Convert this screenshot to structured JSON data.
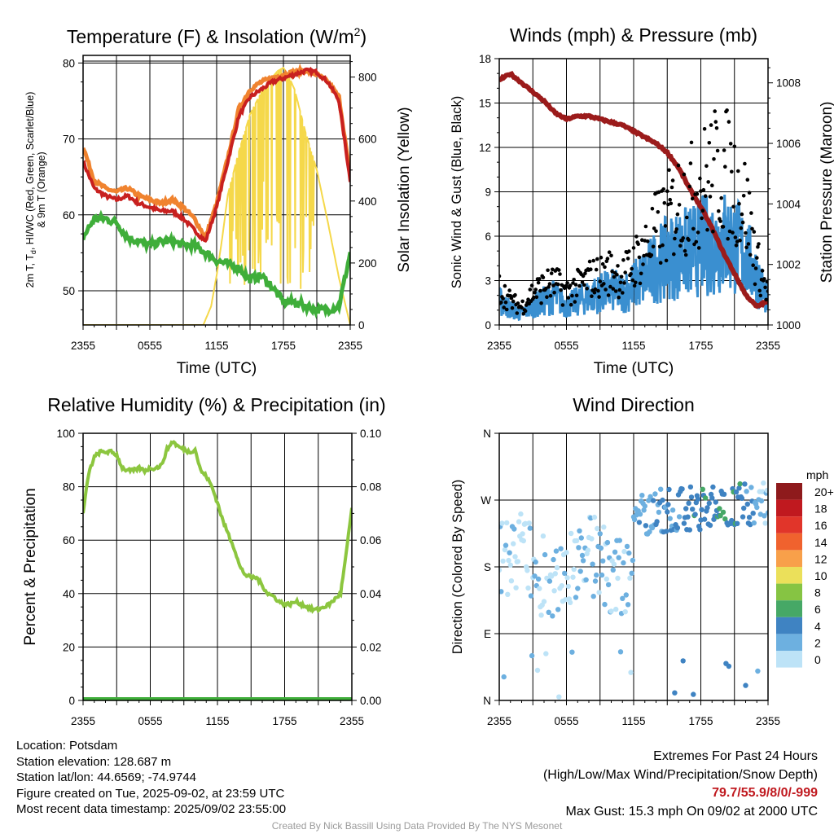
{
  "colors": {
    "temp": "#c8201f",
    "temp9m": "#f0832f",
    "dewpoint": "#3fae3a",
    "insolation": "#f5d84a",
    "wind": "#3a8fd0",
    "gust": "#000000",
    "pressure": "#9b1b1b",
    "rh": "#8cc63f",
    "precip": "#3fae3a"
  },
  "chart_data": [
    {
      "type": "line",
      "title_main": "Temperature (F) & Insolation (W/m",
      "title_sup": "2",
      "title_close": ")",
      "xlabel": "Time (UTC)",
      "ylabel_left_1": "2m T, T",
      "ylabel_left_sub": "d",
      "ylabel_left_2": ", HI/WC (Red, Green, Scarlet/Blue)",
      "ylabel_left_3": "& 9m T (Orange)",
      "ylabel_right": "Solar Insolation (Yellow)",
      "xticks": [
        "2355",
        "0555",
        "1155",
        "1755",
        "2355"
      ],
      "ylim_left": [
        45.5,
        81
      ],
      "yticks_left": [
        "50",
        "60",
        "70",
        "80"
      ],
      "ylim_right": [
        0,
        870
      ],
      "yticks_right": [
        "0",
        "200",
        "400",
        "600",
        "800"
      ],
      "x_hours": [
        0,
        1,
        2,
        3,
        4,
        5,
        6,
        7,
        8,
        9,
        10,
        11,
        12,
        13,
        14,
        15,
        16,
        17,
        18,
        19,
        20,
        21,
        22,
        23,
        24
      ],
      "series": [
        {
          "key": "temp",
          "values": [
            67,
            63.5,
            62.5,
            62,
            62.5,
            61.5,
            61,
            60.5,
            60.5,
            59.5,
            58,
            56.5,
            61,
            67,
            73,
            75.5,
            76.5,
            77.5,
            78,
            78.5,
            79,
            78.8,
            77.5,
            75,
            64.5
          ]
        },
        {
          "key": "temp9m",
          "values": [
            69,
            64.5,
            63.5,
            63,
            63.5,
            62.5,
            62,
            61.5,
            62,
            61,
            59.5,
            57,
            61.5,
            67.5,
            74,
            76.5,
            77.5,
            78,
            78.5,
            78.8,
            79,
            78.5,
            77.5,
            75.5,
            65
          ]
        },
        {
          "key": "dewpoint",
          "values": [
            57,
            59.5,
            59.5,
            59,
            57,
            56.5,
            56,
            56.5,
            56.5,
            56,
            56,
            55,
            54,
            53.5,
            53,
            51.5,
            52,
            50.5,
            48.5,
            48.5,
            48,
            47.5,
            47.5,
            48,
            55
          ]
        }
      ],
      "insolation_hours": [
        0,
        10.8,
        11.5,
        12,
        12.5,
        13,
        14,
        15,
        16,
        17,
        17.5,
        18,
        18.5,
        19,
        20,
        21,
        22,
        23,
        24
      ],
      "insolation_values": [
        0,
        0,
        60,
        160,
        280,
        420,
        560,
        680,
        750,
        800,
        820,
        830,
        800,
        760,
        620,
        500,
        330,
        150,
        0
      ]
    },
    {
      "type": "line",
      "title": "Winds (mph) & Pressure (mb)",
      "xlabel": "Time (UTC)",
      "ylabel_left": "Sonic Wind & Gust (Blue, Black)",
      "ylabel_right": "Station Pressure (Maroon)",
      "xticks": [
        "2355",
        "0555",
        "1155",
        "1755",
        "2355"
      ],
      "ylim_left": [
        0,
        18
      ],
      "yticks_left": [
        "0",
        "3",
        "6",
        "9",
        "12",
        "15",
        "18"
      ],
      "ylim_right": [
        1000,
        1008.8
      ],
      "yticks_right": [
        "1000",
        "1002",
        "1004",
        "1006",
        "1008"
      ],
      "x_hours": [
        0,
        1,
        2,
        3,
        4,
        5,
        6,
        7,
        8,
        9,
        10,
        11,
        12,
        13,
        14,
        15,
        16,
        17,
        18,
        19,
        20,
        21,
        22,
        23,
        24
      ],
      "wind_values": [
        1.5,
        1,
        0.7,
        1.2,
        1.5,
        1.8,
        1.2,
        1.5,
        1.8,
        2,
        2.2,
        2,
        2.5,
        3,
        3.8,
        4.2,
        4.5,
        4.6,
        5,
        5,
        5.3,
        5.1,
        4.4,
        3,
        1.5
      ],
      "gust_values": [
        2.5,
        1.6,
        1.2,
        2.2,
        2.6,
        2.8,
        2.2,
        2.6,
        3.1,
        3.3,
        3.6,
        3.2,
        4.2,
        5.1,
        6.3,
        7.1,
        8.2,
        8.5,
        9.3,
        10.1,
        10.6,
        9.4,
        8.1,
        4.2,
        2.1
      ],
      "pressure_values": [
        1008.1,
        1008.3,
        1008.0,
        1007.7,
        1007.4,
        1007.0,
        1006.8,
        1006.9,
        1006.9,
        1006.8,
        1006.7,
        1006.6,
        1006.4,
        1006.2,
        1006.0,
        1005.7,
        1005.2,
        1004.5,
        1003.9,
        1003.2,
        1002.4,
        1001.7,
        1001.0,
        1000.6,
        1000.8
      ]
    },
    {
      "type": "line",
      "title": "Relative Humidity (%) & Precipitation (in)",
      "ylabel_left": "Percent & Precipitation",
      "xticks": [
        "2355",
        "0555",
        "1155",
        "1755",
        "2355"
      ],
      "ylim_left": [
        0,
        100
      ],
      "yticks_left": [
        "0",
        "20",
        "40",
        "60",
        "80",
        "100"
      ],
      "ylim_right": [
        0,
        0.1
      ],
      "yticks_right": [
        "0.00",
        "0.02",
        "0.04",
        "0.06",
        "0.08",
        "0.10"
      ],
      "x_hours": [
        0,
        0.5,
        1,
        1.5,
        2,
        2.5,
        3,
        3.5,
        4,
        4.5,
        5,
        5.5,
        6,
        6.5,
        7,
        7.5,
        8,
        8.5,
        9,
        9.5,
        10,
        10.5,
        11,
        11.5,
        12,
        12.5,
        13,
        13.5,
        14,
        14.5,
        15,
        15.5,
        16,
        16.5,
        17,
        17.5,
        18,
        18.5,
        19,
        19.5,
        20,
        20.5,
        21,
        21.5,
        22,
        22.5,
        23,
        23.5,
        24
      ],
      "rh_values": [
        70,
        85,
        91,
        93,
        93,
        93,
        92,
        87,
        86,
        86,
        87,
        86,
        87,
        87,
        88,
        94,
        97,
        95,
        94,
        93,
        94,
        86,
        84,
        80,
        74,
        67,
        62,
        57,
        50,
        47,
        46,
        46,
        43,
        40,
        39,
        37,
        36,
        36,
        37,
        36,
        35,
        34,
        34,
        35,
        36,
        38,
        40,
        55,
        72
      ],
      "precip_values": [
        0,
        0,
        0,
        0,
        0,
        0,
        0,
        0,
        0,
        0,
        0,
        0,
        0,
        0,
        0,
        0,
        0,
        0,
        0,
        0,
        0,
        0,
        0,
        0,
        0,
        0,
        0,
        0,
        0,
        0,
        0,
        0,
        0,
        0,
        0,
        0,
        0,
        0,
        0,
        0,
        0,
        0,
        0,
        0,
        0,
        0,
        0,
        0,
        0
      ]
    },
    {
      "type": "scatter",
      "title": "Wind Direction",
      "ylabel": "Direction (Colored By Speed)",
      "xticks": [
        "2355",
        "0555",
        "1155",
        "1755",
        "2355"
      ],
      "yticks": [
        "N",
        "E",
        "S",
        "W",
        "N"
      ],
      "ylim": [
        0,
        360
      ],
      "legend_title": "mph",
      "legend_labels": [
        "20+",
        "18",
        "16",
        "14",
        "12",
        "10",
        "8",
        "6",
        "4",
        "2",
        "0"
      ],
      "legend_colors": [
        "#8e1a1c",
        "#c0191f",
        "#e1352a",
        "#f0622e",
        "#f8a04a",
        "#ebe05a",
        "#86c443",
        "#46a866",
        "#3f83c2",
        "#6db0e0",
        "#bde3f7"
      ],
      "legend_placement": "right"
    }
  ],
  "footer": {
    "location": "Location: Potsdam",
    "elevation": "Station elevation: 128.687 m",
    "latlon": "Station lat/lon: 44.6569; -74.9744",
    "created": "Figure created on Tue, 2025-09-02, at 23:59 UTC",
    "recent": "Most recent data timestamp: 2025/09/02 23:55:00",
    "extremes_title": "Extremes For Past 24 Hours",
    "extremes_subtitle": "(High/Low/Max Wind/Precipitation/Snow Depth)",
    "extremes_values": "79.7/55.9/8/0/-999",
    "max_gust": "Max Gust: 15.3 mph On 09/02 at 2000 UTC",
    "credit": "Created By Nick Bassill Using Data Provided By The NYS Mesonet"
  }
}
